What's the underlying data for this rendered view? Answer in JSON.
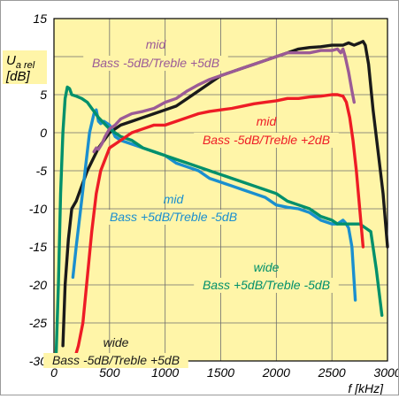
{
  "chart_data": {
    "type": "line",
    "xlabel": "f [kHz]",
    "ylabel_main": "U",
    "ylabel_sub": "a rel",
    "ylabel_unit": "[dB]",
    "xlim": [
      0,
      3000
    ],
    "ylim": [
      -30,
      15
    ],
    "xticks": [
      0,
      500,
      1000,
      1500,
      2000,
      2500,
      3000
    ],
    "yticks": [
      15,
      10,
      5,
      0,
      -5,
      -10,
      -15,
      -20,
      -25,
      -30
    ],
    "grid": true,
    "background": "#fff5a8",
    "series": [
      {
        "name": "mid Bass -5dB/Treble +5dB",
        "label_line1": "mid",
        "label_line2": "Bass -5dB/Treble +5dB",
        "color": "#9b5b96",
        "x": [
          360,
          380,
          400,
          430,
          460,
          500,
          550,
          600,
          700,
          800,
          900,
          1000,
          1100,
          1200,
          1300,
          1400,
          1500,
          1600,
          1700,
          1800,
          1900,
          2000,
          2100,
          2200,
          2300,
          2400,
          2500,
          2550,
          2580,
          2600,
          2620,
          2650,
          2680,
          2700
        ],
        "y": [
          -2.5,
          -2.0,
          -2.2,
          -1.5,
          -0.5,
          0.5,
          1.0,
          1.8,
          2.5,
          2.8,
          3.2,
          4.0,
          4.5,
          5.5,
          6.3,
          7.0,
          7.5,
          8.0,
          8.5,
          9.0,
          9.5,
          10.0,
          10.5,
          10.5,
          10.5,
          10.8,
          10.8,
          11.0,
          10.5,
          11.0,
          10.0,
          8.0,
          5.5,
          4.0
        ]
      },
      {
        "name": "wide Bass -5dB/Treble +5dB",
        "label_line1": "wide",
        "label_line2": "Bass -5dB/Treble +5dB",
        "color": "#1a1a1a",
        "x": [
          80,
          100,
          130,
          160,
          200,
          250,
          300,
          350,
          400,
          500,
          600,
          700,
          800,
          900,
          1000,
          1100,
          1200,
          1300,
          1400,
          1500,
          1600,
          1700,
          1800,
          1900,
          2000,
          2100,
          2200,
          2300,
          2400,
          2500,
          2550,
          2600,
          2650,
          2700,
          2750,
          2780,
          2800,
          2830,
          2870,
          2920,
          2960,
          3000
        ],
        "y": [
          -28,
          -20,
          -14,
          -10,
          -9,
          -7,
          -5,
          -3.5,
          -2.0,
          0.0,
          1.0,
          1.5,
          2.0,
          2.5,
          3.0,
          3.5,
          4.5,
          5.5,
          6.5,
          7.5,
          8.0,
          8.5,
          9.0,
          9.5,
          10.0,
          10.5,
          11.0,
          11.2,
          11.3,
          11.5,
          11.5,
          11.5,
          11.8,
          11.5,
          11.8,
          12.0,
          11.5,
          9.0,
          3.0,
          -3.0,
          -8.0,
          -15.0
        ]
      },
      {
        "name": "mid Bass -5dB/Treble +2dB",
        "label_line1": "mid",
        "label_line2": "Bass -5dB/Treble +2dB",
        "color": "#ee1c25",
        "x": [
          180,
          220,
          260,
          300,
          340,
          380,
          420,
          500,
          600,
          700,
          800,
          900,
          1000,
          1100,
          1200,
          1300,
          1400,
          1500,
          1600,
          1700,
          1800,
          1900,
          2000,
          2100,
          2200,
          2300,
          2400,
          2500,
          2550,
          2600,
          2630,
          2660,
          2690,
          2720,
          2750,
          2780
        ],
        "y": [
          -30,
          -28,
          -25,
          -19,
          -13,
          -8,
          -5,
          -2.0,
          -1.0,
          0.0,
          0.5,
          1.0,
          1.0,
          1.5,
          2.0,
          2.5,
          2.8,
          3.0,
          3.2,
          3.5,
          3.8,
          4.0,
          4.2,
          4.5,
          4.5,
          4.7,
          4.8,
          5.0,
          5.0,
          4.8,
          4.0,
          2.0,
          -1.0,
          -5.0,
          -10.0,
          -15.0
        ]
      },
      {
        "name": "mid Bass +5dB/Treble -5dB",
        "label_line1": "mid",
        "label_line2": "Bass +5dB/Treble -5dB",
        "color": "#1a8fcf",
        "x": [
          170,
          200,
          240,
          280,
          320,
          360,
          380,
          400,
          420,
          450,
          480,
          500,
          520,
          550,
          600,
          700,
          800,
          900,
          1000,
          1100,
          1200,
          1300,
          1400,
          1500,
          1600,
          1700,
          1800,
          1900,
          2000,
          2100,
          2200,
          2300,
          2400,
          2500,
          2550,
          2600,
          2620,
          2650,
          2680,
          2710
        ],
        "y": [
          -19,
          -15,
          -10,
          -5,
          0.0,
          2.5,
          3.0,
          1.5,
          1.2,
          1.5,
          1.2,
          1.0,
          0.5,
          -0.5,
          -1.0,
          -1.5,
          -2.0,
          -2.5,
          -3.0,
          -4.0,
          -4.5,
          -5.0,
          -6.0,
          -6.5,
          -7.0,
          -7.5,
          -8.0,
          -8.5,
          -9.5,
          -9.8,
          -10.0,
          -10.5,
          -11.5,
          -12.0,
          -12.0,
          -11.5,
          -11.8,
          -12.5,
          -15.0,
          -22.0
        ]
      },
      {
        "name": "wide Bass +5dB/Treble -5dB",
        "label_line1": "wide",
        "label_line2": "Bass +5dB/Treble -5dB",
        "color": "#00906b",
        "x": [
          20,
          40,
          60,
          80,
          100,
          120,
          140,
          160,
          200,
          250,
          300,
          350,
          400,
          500,
          600,
          700,
          800,
          900,
          1000,
          1100,
          1200,
          1300,
          1400,
          1500,
          1600,
          1700,
          1800,
          1900,
          2000,
          2100,
          2200,
          2300,
          2400,
          2500,
          2550,
          2600,
          2650,
          2700,
          2750,
          2800,
          2850,
          2900,
          2950
        ],
        "y": [
          -29,
          -20,
          -8,
          0.0,
          4.5,
          6.0,
          5.8,
          5.0,
          4.8,
          4.5,
          4.0,
          3.0,
          2.0,
          0.5,
          -0.5,
          -1.0,
          -2.0,
          -2.5,
          -3.0,
          -3.5,
          -4.0,
          -4.5,
          -5.0,
          -5.5,
          -6.0,
          -6.5,
          -7.0,
          -7.5,
          -8.0,
          -9.0,
          -9.5,
          -10.0,
          -11.0,
          -11.5,
          -12.0,
          -12.0,
          -12.0,
          -12.0,
          -12.0,
          -12.5,
          -13.0,
          -18.0,
          -24.0
        ]
      }
    ]
  }
}
